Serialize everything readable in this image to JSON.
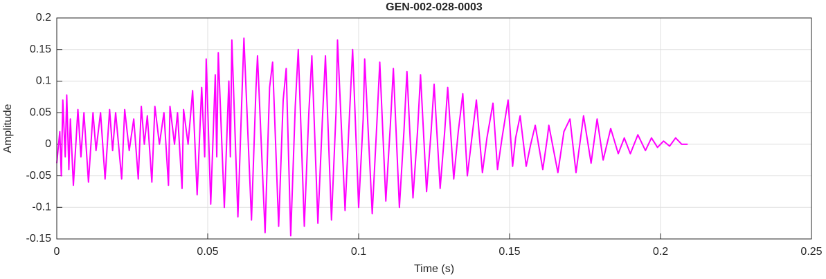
{
  "chart_data": {
    "type": "line",
    "title": "GEN-002-028-0003",
    "x_label": "Time (s)",
    "y_label": "Amplitude",
    "xlim": [
      0,
      0.25
    ],
    "xticks": [
      0,
      0.05,
      0.1,
      0.15,
      0.2,
      0.25
    ],
    "ylim": [
      -0.15,
      0.2
    ],
    "yticks": [
      -0.15,
      -0.1,
      -0.05,
      0,
      0.05,
      0.1,
      0.15,
      0.2
    ],
    "grid": true,
    "series": [
      {
        "color": "#ff00ff",
        "x": [
          0.0,
          0.001,
          0.0015,
          0.002,
          0.0028,
          0.0033,
          0.004,
          0.0045,
          0.0055,
          0.007,
          0.008,
          0.009,
          0.0105,
          0.012,
          0.013,
          0.0145,
          0.016,
          0.0175,
          0.0185,
          0.0195,
          0.0215,
          0.0225,
          0.024,
          0.0255,
          0.027,
          0.028,
          0.029,
          0.03,
          0.0315,
          0.0325,
          0.034,
          0.0355,
          0.037,
          0.0375,
          0.039,
          0.04,
          0.0415,
          0.042,
          0.0435,
          0.045,
          0.0465,
          0.048,
          0.049,
          0.0495,
          0.051,
          0.0525,
          0.053,
          0.0535,
          0.0555,
          0.057,
          0.0575,
          0.058,
          0.06,
          0.0615,
          0.062,
          0.0645,
          0.066,
          0.0665,
          0.069,
          0.0705,
          0.0715,
          0.0735,
          0.075,
          0.076,
          0.0775,
          0.079,
          0.08,
          0.082,
          0.0835,
          0.0845,
          0.0865,
          0.088,
          0.089,
          0.091,
          0.0925,
          0.093,
          0.0955,
          0.097,
          0.098,
          0.1,
          0.1015,
          0.102,
          0.1045,
          0.106,
          0.107,
          0.109,
          0.1105,
          0.1115,
          0.1135,
          0.115,
          0.116,
          0.118,
          0.1195,
          0.1205,
          0.1225,
          0.124,
          0.125,
          0.127,
          0.1285,
          0.1295,
          0.1315,
          0.133,
          0.1345,
          0.136,
          0.1375,
          0.139,
          0.141,
          0.1425,
          0.1445,
          0.146,
          0.1475,
          0.1495,
          0.151,
          0.152,
          0.1535,
          0.1555,
          0.157,
          0.1585,
          0.161,
          0.1625,
          0.163,
          0.166,
          0.168,
          0.17,
          0.172,
          0.1745,
          0.177,
          0.179,
          0.181,
          0.1835,
          0.186,
          0.188,
          0.19,
          0.1925,
          0.195,
          0.197,
          0.199,
          0.201,
          0.203,
          0.205,
          0.207,
          0.209
        ],
        "values": [
          -0.03,
          0.02,
          -0.05,
          0.07,
          -0.02,
          0.078,
          -0.04,
          0.04,
          -0.065,
          0.055,
          -0.02,
          0.05,
          -0.06,
          0.05,
          -0.01,
          0.05,
          -0.055,
          0.055,
          -0.01,
          0.05,
          -0.055,
          0.055,
          -0.01,
          0.04,
          -0.055,
          0.06,
          0.0,
          0.045,
          -0.06,
          0.06,
          0.0,
          0.05,
          -0.065,
          0.06,
          0.0,
          0.05,
          -0.07,
          0.055,
          0.0,
          0.085,
          -0.08,
          0.09,
          -0.02,
          0.135,
          -0.095,
          0.11,
          -0.02,
          0.145,
          -0.1,
          0.1,
          -0.02,
          0.165,
          -0.115,
          0.1,
          0.168,
          -0.12,
          0.09,
          0.14,
          -0.14,
          0.09,
          0.13,
          -0.13,
          0.07,
          0.12,
          -0.145,
          0.06,
          0.15,
          -0.13,
          0.05,
          0.14,
          -0.125,
          0.04,
          0.14,
          -0.12,
          0.05,
          0.165,
          -0.105,
          0.05,
          0.15,
          -0.1,
          0.04,
          0.135,
          -0.11,
          0.03,
          0.13,
          -0.09,
          0.03,
          0.12,
          -0.1,
          0.02,
          0.115,
          -0.085,
          0.02,
          0.11,
          -0.075,
          0.02,
          0.095,
          -0.07,
          0.02,
          0.09,
          -0.055,
          0.02,
          0.08,
          -0.05,
          0.01,
          0.07,
          -0.045,
          0.01,
          0.065,
          -0.04,
          0.01,
          0.07,
          -0.035,
          0.01,
          0.045,
          -0.035,
          0.0,
          0.03,
          -0.04,
          0.01,
          0.03,
          -0.045,
          0.02,
          0.04,
          -0.045,
          0.045,
          -0.03,
          0.04,
          -0.025,
          0.025,
          -0.015,
          0.01,
          -0.015,
          0.015,
          -0.01,
          0.01,
          -0.005,
          0.005,
          -0.003,
          0.01,
          0.0,
          0.0
        ]
      }
    ]
  }
}
